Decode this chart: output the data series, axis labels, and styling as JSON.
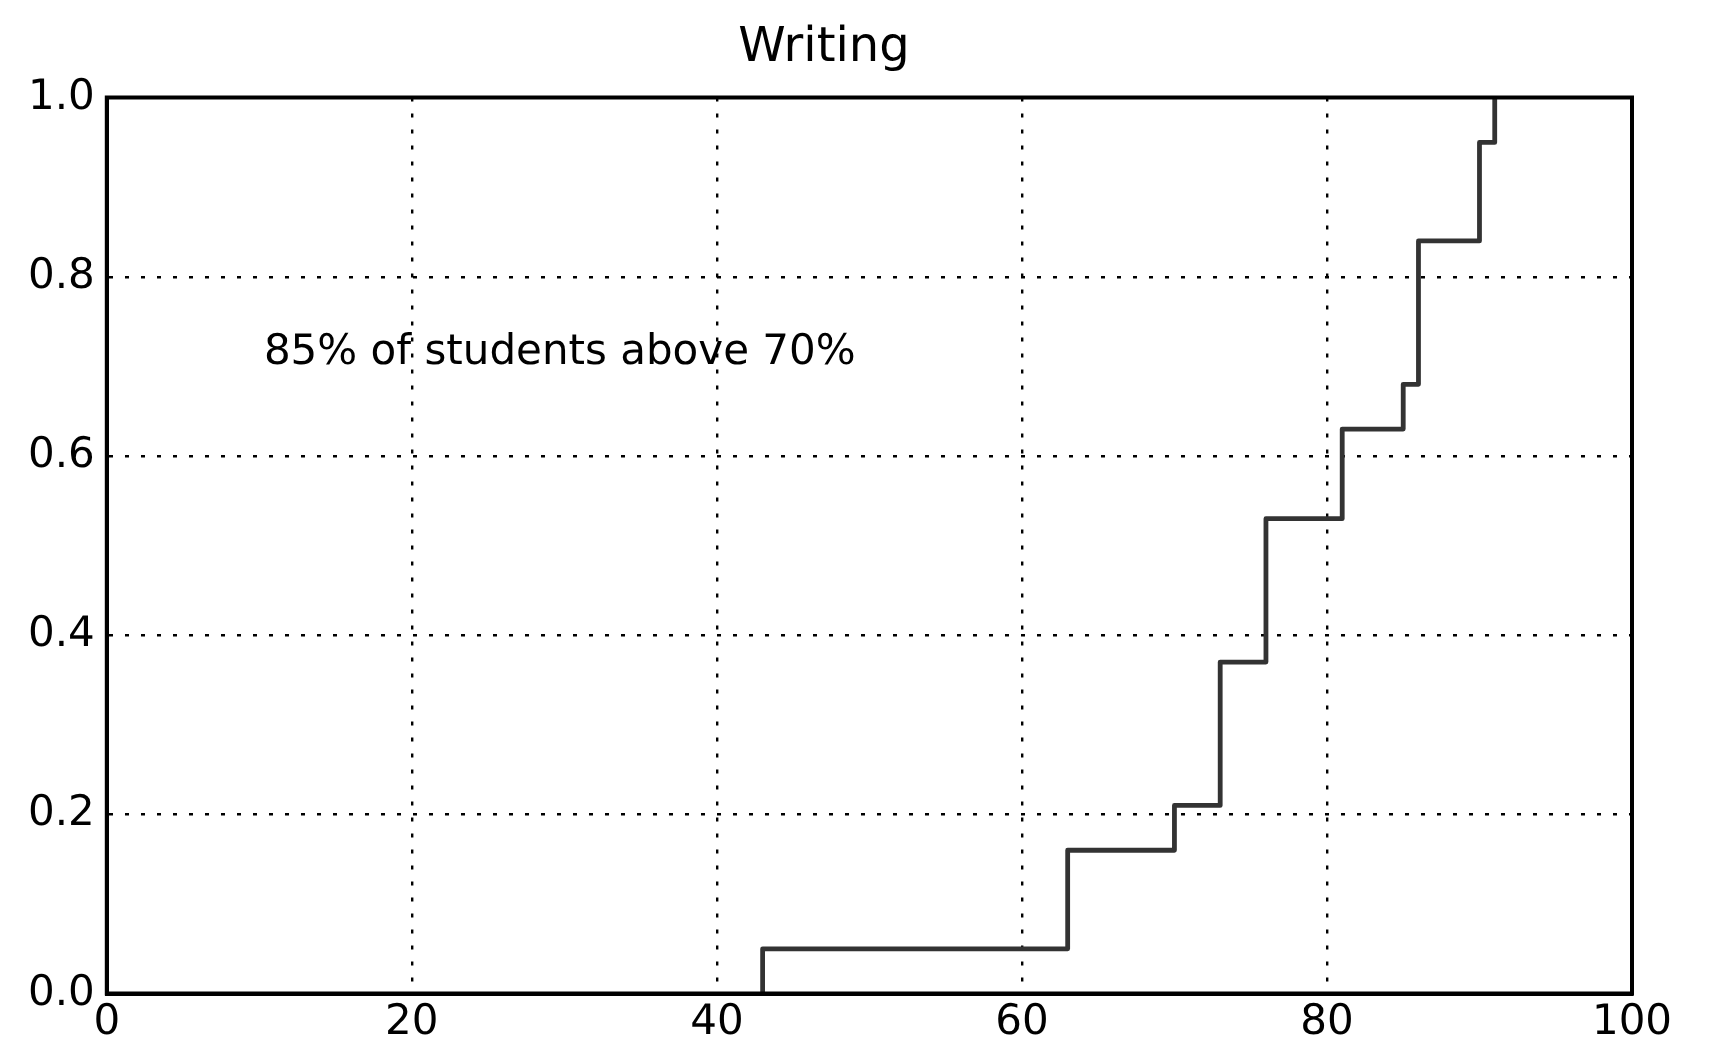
{
  "chart_data": {
    "type": "step",
    "title": "Writing",
    "x": [
      43,
      43,
      63,
      70,
      73,
      76,
      81,
      85,
      86,
      90,
      91
    ],
    "values": [
      0,
      0.05,
      0.16,
      0.21,
      0.37,
      0.53,
      0.63,
      0.68,
      0.84,
      0.95,
      1.0
    ],
    "color": "#333333",
    "xlim": [
      0,
      100
    ],
    "xticks": [
      0,
      20,
      40,
      60,
      80,
      100
    ],
    "ylim": [
      0,
      1
    ],
    "yticks": [
      {
        "value": 0,
        "label": "0.0"
      },
      {
        "value": 0.2,
        "label": "0.2"
      },
      {
        "value": 0.4,
        "label": "0.4"
      },
      {
        "value": 0.6,
        "label": "0.6"
      },
      {
        "value": 0.8,
        "label": "0.8"
      },
      {
        "value": 1,
        "label": "1.0"
      }
    ],
    "grid": true,
    "line_style": "solid",
    "marker": "none",
    "legend": false,
    "annotations": [
      "85% of students above 70%"
    ]
  }
}
